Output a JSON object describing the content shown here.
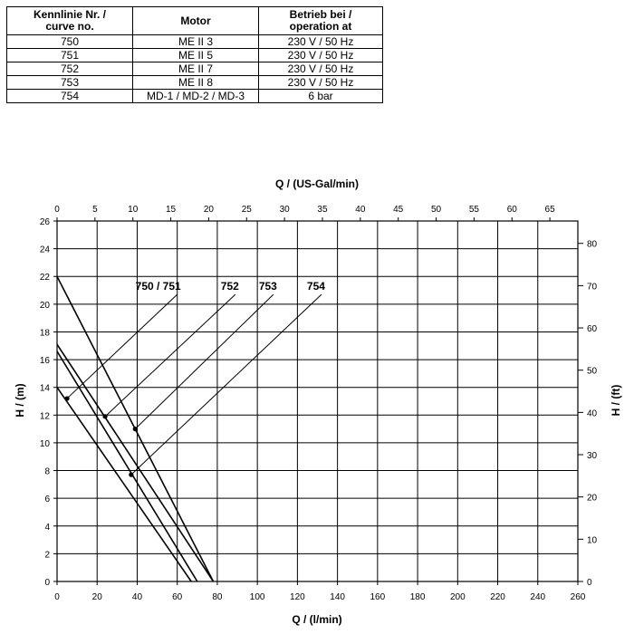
{
  "table": {
    "headers": [
      [
        "Kennlinie Nr. /",
        "curve no."
      ],
      [
        "Motor"
      ],
      [
        "Betrieb bei /",
        "operation at"
      ]
    ],
    "rows": [
      [
        "750",
        "ME II 3",
        "230 V / 50 Hz"
      ],
      [
        "751",
        "ME II 5",
        "230 V / 50 Hz"
      ],
      [
        "752",
        "ME II 7",
        "230 V / 50 Hz"
      ],
      [
        "753",
        "ME II 8",
        "230 V / 50 Hz"
      ],
      [
        "754",
        "MD-1 / MD-2 / MD-3",
        "6 bar"
      ]
    ]
  },
  "chart_data": {
    "type": "line",
    "xlabel": "Q / (l/min)",
    "x2label": "Q / (US-Gal/min)",
    "ylabel": "H / (m)",
    "y2label": "H / (ft)",
    "xlim": [
      0,
      260
    ],
    "ylim": [
      0,
      26
    ],
    "x2lim": [
      0,
      68.69
    ],
    "y2lim": [
      0,
      85.3
    ],
    "x_ticks": [
      0,
      20,
      40,
      60,
      80,
      100,
      120,
      140,
      160,
      180,
      200,
      220,
      240,
      260
    ],
    "y_ticks": [
      0,
      2,
      4,
      6,
      8,
      10,
      12,
      14,
      16,
      18,
      20,
      22,
      24,
      26
    ],
    "x2_ticks": [
      0,
      5,
      10,
      15,
      20,
      25,
      30,
      35,
      40,
      45,
      50,
      55,
      60,
      65
    ],
    "y2_ticks": [
      0,
      10,
      20,
      30,
      40,
      50,
      60,
      70,
      80
    ],
    "grid": true,
    "series": [
      {
        "name": "750 / 751",
        "x": [
          0,
          67
        ],
        "y": [
          14,
          0
        ],
        "marker": {
          "x": 5,
          "y": 13.2
        },
        "label_tip": {
          "x": 60,
          "y": 20.7
        }
      },
      {
        "name": "752",
        "x": [
          0,
          70
        ],
        "y": [
          16.6,
          0
        ],
        "marker": {
          "x": 24,
          "y": 11.9
        },
        "label_tip": {
          "x": 89,
          "y": 20.7
        }
      },
      {
        "name": "753",
        "x": [
          0,
          78
        ],
        "y": [
          22,
          0
        ],
        "marker": {
          "x": 39,
          "y": 11
        },
        "label_tip": {
          "x": 108,
          "y": 20.7
        }
      },
      {
        "name": "754",
        "x": [
          0,
          78
        ],
        "y": [
          17.1,
          0
        ],
        "marker": {
          "x": 37,
          "y": 7.7
        },
        "label_tip": {
          "x": 132,
          "y": 20.7
        }
      }
    ]
  }
}
